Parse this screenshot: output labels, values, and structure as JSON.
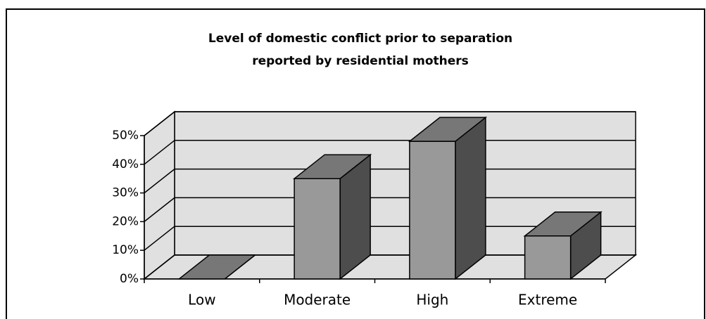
{
  "chart_data": {
    "type": "bar3d",
    "title": [
      "Level of domestic conflict prior to separation",
      "reported by residential mothers"
    ],
    "categories": [
      "Low",
      "Moderate",
      "High",
      "Extreme"
    ],
    "values": [
      0,
      35,
      48,
      15
    ],
    "color": "#999999",
    "top_color": "#777777",
    "side_color": "#4d4d4d",
    "wall_color": "#e0e0e0",
    "ylim": [
      0,
      50
    ],
    "yticks": [
      {
        "value": 0,
        "label": "0%"
      },
      {
        "value": 10,
        "label": "10%"
      },
      {
        "value": 20,
        "label": "20%"
      },
      {
        "value": 30,
        "label": "30%"
      },
      {
        "value": 40,
        "label": "40%"
      },
      {
        "value": 50,
        "label": "50%"
      }
    ],
    "grid": true
  }
}
